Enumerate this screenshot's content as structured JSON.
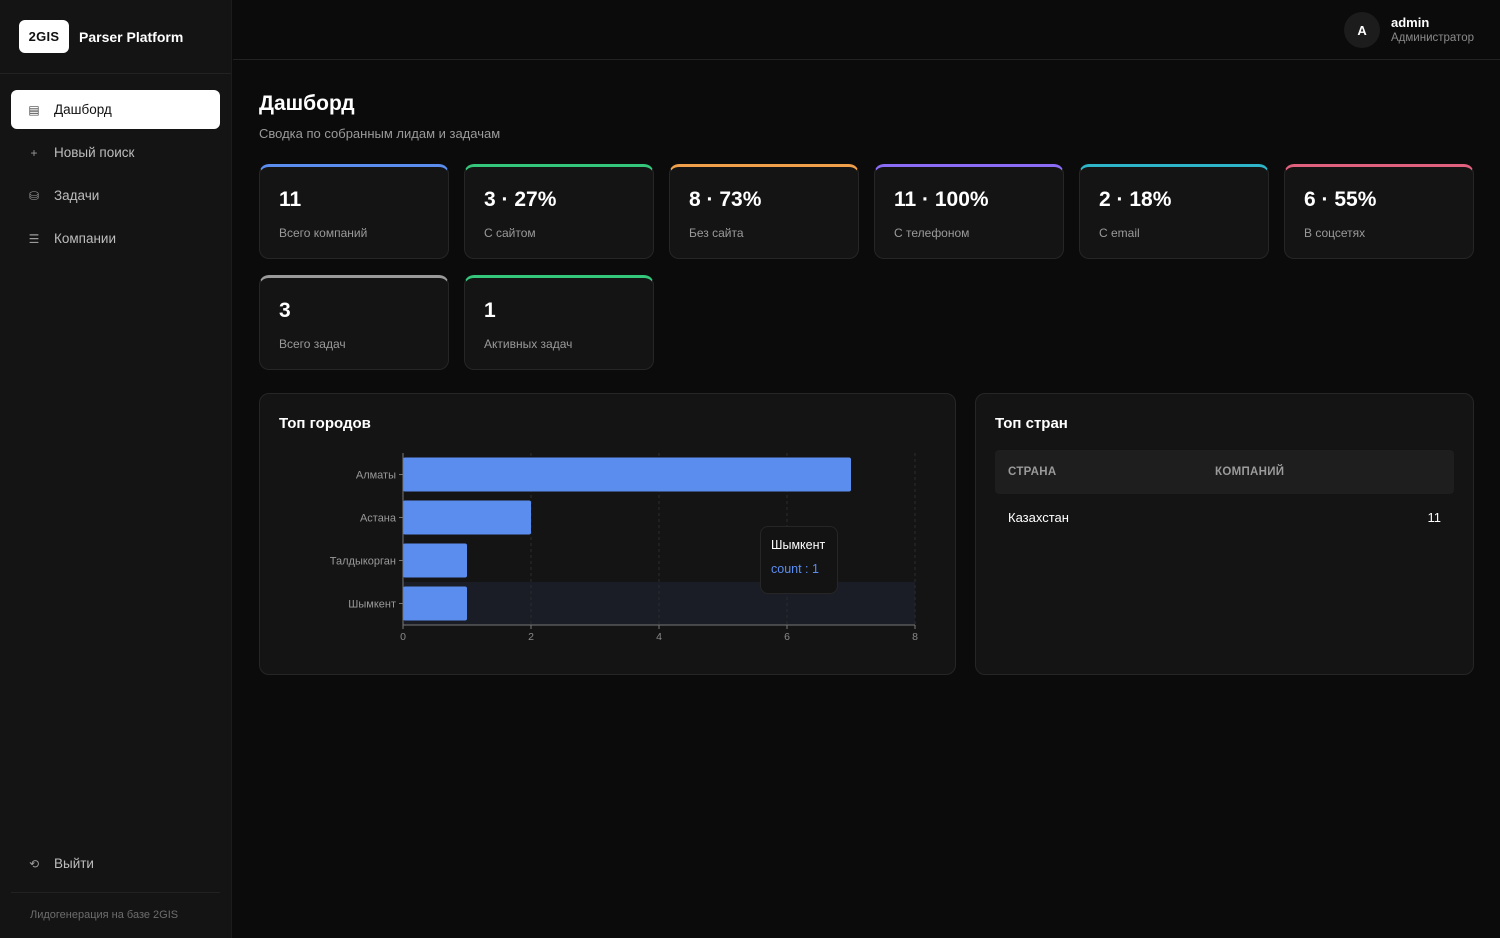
{
  "brand": {
    "logo": "2GIS",
    "name": "Parser Platform"
  },
  "nav": [
    {
      "label": "Дашборд",
      "icon": "▤",
      "active": true
    },
    {
      "label": "Новый поиск",
      "icon": "+"
    },
    {
      "label": "Задачи",
      "icon": "⛁"
    },
    {
      "label": "Компании",
      "icon": "☰"
    }
  ],
  "logout": {
    "label": "Выйти",
    "icon": "⟲"
  },
  "sidebar_footer": "Лидогенерация на базе 2GIS",
  "user": {
    "initial": "A",
    "name": "admin",
    "role": "Администратор"
  },
  "page": {
    "title": "Дашборд",
    "subtitle": "Сводка по собранным лидам и задачам"
  },
  "stats": [
    {
      "value": "11",
      "label": "Всего компаний",
      "accent": "#5b8def"
    },
    {
      "value": "3 · 27%",
      "label": "С сайтом",
      "accent": "#34c77b"
    },
    {
      "value": "8 · 73%",
      "label": "Без сайта",
      "accent": "#f0a04b"
    },
    {
      "value": "11 · 100%",
      "label": "С телефоном",
      "accent": "#8b6cf6"
    },
    {
      "value": "2 · 18%",
      "label": "С email",
      "accent": "#2fb5c9"
    },
    {
      "value": "6 · 55%",
      "label": "В соцсетях",
      "accent": "#e0607e"
    },
    {
      "value": "3",
      "label": "Всего задач",
      "accent": "#9a9a9a"
    },
    {
      "value": "1",
      "label": "Активных задач",
      "accent": "#34c77b"
    }
  ],
  "cities_panel": {
    "title": "Топ городов"
  },
  "chart_data": {
    "type": "bar",
    "orientation": "horizontal",
    "categories": [
      "Алматы",
      "Астана",
      "Талдыкорган",
      "Шымкент"
    ],
    "values": [
      7,
      2,
      1,
      1
    ],
    "xlim": [
      0,
      8
    ],
    "xticks": [
      "0",
      "2",
      "4",
      "6",
      "8"
    ],
    "grid": true,
    "bar_color": "#5b8def",
    "highlighted": "Шымкент"
  },
  "tooltip": {
    "title": "Шымкент",
    "value": "count : 1"
  },
  "countries_panel": {
    "title": "Топ стран",
    "columns": [
      "СТРАНА",
      "КОМПАНИЙ"
    ],
    "rows": [
      {
        "country": "Казахстан",
        "count": "11"
      }
    ]
  }
}
